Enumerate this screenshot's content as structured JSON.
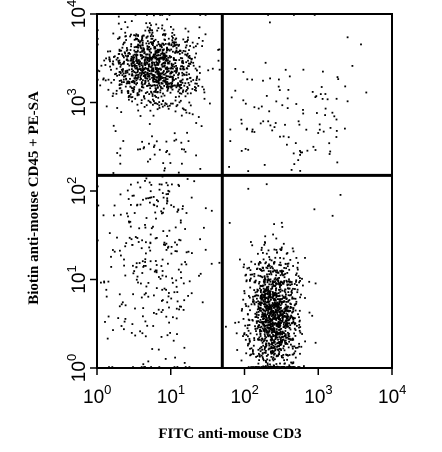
{
  "chart_data": {
    "type": "scatter",
    "xlabel": "FITC anti-mouse CD3",
    "ylabel": "Biotin anti-mouse CD45 + PE-SA",
    "xscale": "log",
    "yscale": "log",
    "xlim": [
      1,
      10000
    ],
    "ylim": [
      1,
      10000
    ],
    "x_ticks": [
      {
        "base": "10",
        "exp": "0",
        "value": 1
      },
      {
        "base": "10",
        "exp": "1",
        "value": 10
      },
      {
        "base": "10",
        "exp": "2",
        "value": 100
      },
      {
        "base": "10",
        "exp": "3",
        "value": 1000
      },
      {
        "base": "10",
        "exp": "4",
        "value": 10000
      }
    ],
    "y_ticks": [
      {
        "base": "10",
        "exp": "0",
        "value": 1
      },
      {
        "base": "10",
        "exp": "1",
        "value": 10
      },
      {
        "base": "10",
        "exp": "2",
        "value": 100
      },
      {
        "base": "10",
        "exp": "3",
        "value": 1000
      },
      {
        "base": "10",
        "exp": "4",
        "value": 10000
      }
    ],
    "quadrant_gates": {
      "x": 50,
      "y": 150
    },
    "grid": false,
    "populations": [
      {
        "x_center": 6,
        "y_center": 2500,
        "x_spread": 0.28,
        "y_spread": 0.22,
        "count": 1100
      },
      {
        "x_center": 250,
        "y_center": 4,
        "x_spread": 0.17,
        "y_spread": 0.35,
        "count": 1300
      },
      {
        "x_center": 6,
        "y_center": 25,
        "x_spread": 0.35,
        "y_spread": 0.7,
        "count": 350
      },
      {
        "x_center": 400,
        "y_center": 800,
        "x_spread": 0.45,
        "y_spread": 0.45,
        "count": 120
      }
    ],
    "colors": {
      "points": "#000000",
      "frame": "#000000",
      "background": "#ffffff"
    }
  }
}
